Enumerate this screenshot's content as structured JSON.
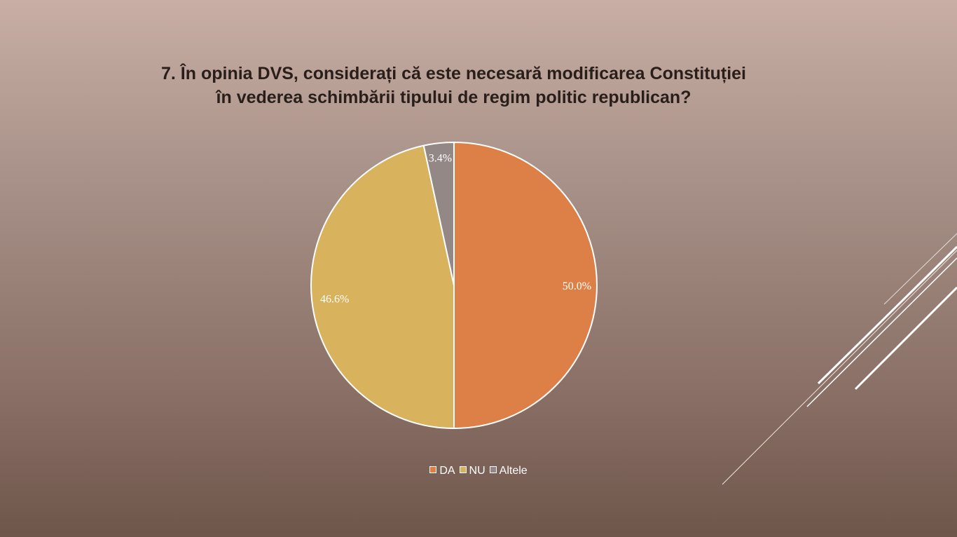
{
  "slide": {
    "title_line1": "7. În opinia DVS, considerați că este necesară modificarea Constituției",
    "title_line2": "în vederea schimbării tipului de regim politic republican?"
  },
  "chart_data": {
    "type": "pie",
    "title": "7. În opinia DVS, considerați că este necesară modificarea Constituției în vederea schimbării tipului de regim politic republican?",
    "categories": [
      "DA",
      "NU",
      "Altele"
    ],
    "values": [
      50.0,
      46.6,
      3.4
    ],
    "labels": [
      "50.0%",
      "46.6%",
      "3.4%"
    ],
    "colors": [
      "#dd8048",
      "#d8b25c",
      "#948886"
    ],
    "legend_position": "bottom"
  }
}
